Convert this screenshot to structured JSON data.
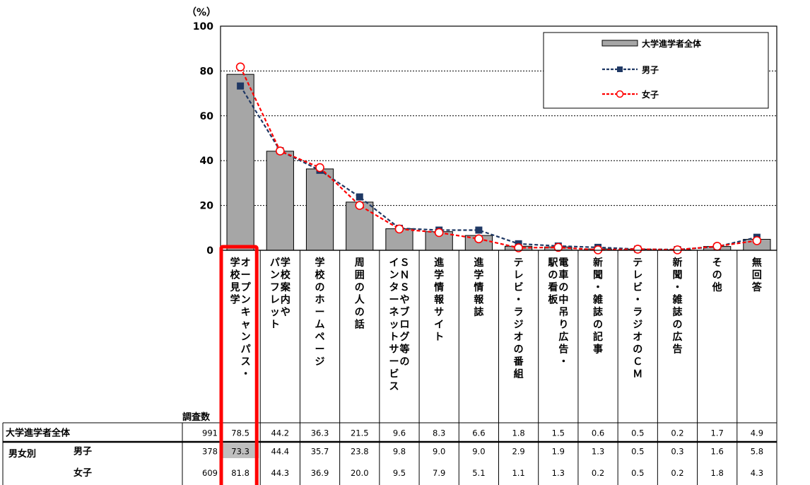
{
  "chart_data": {
    "type": "bar",
    "y_unit_label": "（%）",
    "ylim": [
      0,
      100
    ],
    "yticks": [
      0,
      20,
      40,
      60,
      80,
      100
    ],
    "grid": true,
    "legend_position": "top-right",
    "categories": [
      "オープンキャンパス・学校見学",
      "学校案内やパンフレット",
      "学校のホームページ",
      "周囲の人の話",
      "SNSやブログ等のインターネットサービス",
      "進学情報サイト",
      "進学情報誌",
      "テレビ・ラジオの番組",
      "電車の中吊り広告・駅の看板",
      "新聞・雑誌の記事",
      "テレビ・ラジオのCM",
      "新聞・雑誌の広告",
      "その他",
      "無回答"
    ],
    "category_columns": [
      [
        "オープンキャンパス・",
        "学校見学"
      ],
      [
        "学校案内や",
        "パンフレット"
      ],
      [
        "学校のホームページ"
      ],
      [
        "周囲の人の話"
      ],
      [
        "ＳＮＳやブログ等の",
        "インターネットサービス"
      ],
      [
        "進学情報サイト"
      ],
      [
        "進学情報誌"
      ],
      [
        "テレビ・ラジオの番組"
      ],
      [
        "電車の中吊り広告・",
        "駅の看板"
      ],
      [
        "新聞・雑誌の記事"
      ],
      [
        "テレビ・ラジオのＣＭ"
      ],
      [
        "新聞・雑誌の広告"
      ],
      [
        "その他"
      ],
      [
        "無回答"
      ]
    ],
    "series": [
      {
        "name": "大学進学者全体",
        "kind": "bar",
        "color": "#a6a6a6",
        "values": [
          78.5,
          44.2,
          36.3,
          21.5,
          9.6,
          8.3,
          6.6,
          1.8,
          1.5,
          0.6,
          0.5,
          0.2,
          1.7,
          4.9
        ]
      },
      {
        "name": "男子",
        "kind": "line",
        "color": "#1f3864",
        "values": [
          73.3,
          44.4,
          35.7,
          23.8,
          9.8,
          9.0,
          9.0,
          2.9,
          1.9,
          1.3,
          0.5,
          0.3,
          1.6,
          5.8
        ]
      },
      {
        "name": "女子",
        "kind": "line",
        "color": "#ff0000",
        "values": [
          81.8,
          44.3,
          36.9,
          20.0,
          9.5,
          7.9,
          5.1,
          1.1,
          1.3,
          0.2,
          0.5,
          0.2,
          1.8,
          4.3
        ]
      }
    ]
  },
  "table": {
    "n_header": "調査数",
    "group_label": "男女別",
    "rows": [
      {
        "label": "大学進学者全体",
        "n": "991",
        "cells": [
          "78.5",
          "44.2",
          "36.3",
          "21.5",
          "9.6",
          "8.3",
          "6.6",
          "1.8",
          "1.5",
          "0.6",
          "0.5",
          "0.2",
          "1.7",
          "4.9"
        ]
      },
      {
        "label": "男子",
        "n": "378",
        "cells": [
          "73.3",
          "44.4",
          "35.7",
          "23.8",
          "9.8",
          "9.0",
          "9.0",
          "2.9",
          "1.9",
          "1.3",
          "0.5",
          "0.3",
          "1.6",
          "5.8"
        ]
      },
      {
        "label": "女子",
        "n": "609",
        "cells": [
          "81.8",
          "44.3",
          "36.9",
          "20.0",
          "9.5",
          "7.9",
          "5.1",
          "1.1",
          "1.3",
          "0.2",
          "0.5",
          "0.2",
          "1.8",
          "4.3"
        ]
      }
    ]
  },
  "highlight": {
    "column_index": 0,
    "highlighted_cell_row": 1,
    "color": "#ff0000",
    "cell_fill": "#bfbfbf"
  }
}
